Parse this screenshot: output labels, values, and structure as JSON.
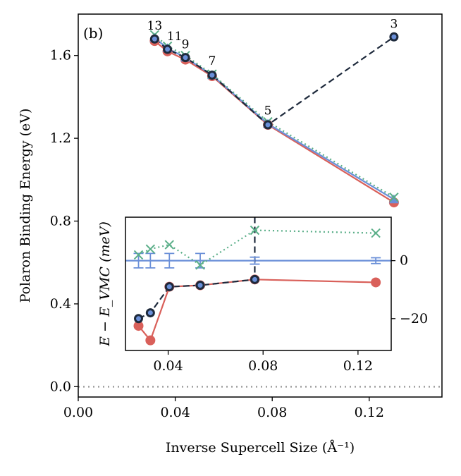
{
  "panel_label": "(b)",
  "chart_data": [
    {
      "type": "line",
      "xlabel": "Inverse Supercell Size (Å⁻¹)",
      "ylabel": "Polaron Binding Energy (eV)",
      "xlim": [
        0.0,
        0.15
      ],
      "ylim": [
        -0.05,
        1.8
      ],
      "xticks": [
        0.0,
        0.04,
        0.08,
        0.12
      ],
      "xtick_labels": [
        "0.00",
        "0.04",
        "0.08",
        "0.12"
      ],
      "yticks": [
        0.0,
        0.4,
        0.8,
        1.2,
        1.6
      ],
      "ytick_labels": [
        "0.0",
        "0.4",
        "0.8",
        "1.2",
        "1.6"
      ],
      "grid": false,
      "reference_line": {
        "y": 0.0,
        "style": "dotted",
        "color": "#9e9e9e"
      },
      "point_labels": [
        {
          "x": 0.0315,
          "y": 1.68,
          "text": "13"
        },
        {
          "x": 0.0368,
          "y": 1.63,
          "text": "11"
        },
        {
          "x": 0.0442,
          "y": 1.59,
          "text": "9"
        },
        {
          "x": 0.0552,
          "y": 1.51,
          "text": "7"
        },
        {
          "x": 0.0782,
          "y": 1.27,
          "text": "5"
        },
        {
          "x": 0.1302,
          "y": 1.69,
          "text": "3"
        }
      ],
      "series": [
        {
          "color": "#d9605a",
          "style": "solid",
          "marker": "circle",
          "x": [
            0.0315,
            0.0368,
            0.0442,
            0.0552,
            0.0782,
            0.1302
          ],
          "y": [
            1.67,
            1.62,
            1.58,
            1.5,
            1.265,
            0.89
          ]
        },
        {
          "color": "#6a8fd8",
          "style": "solid",
          "marker": "triangle",
          "x": [
            0.0315,
            0.0368,
            0.0442,
            0.0552,
            0.0782,
            0.1302
          ],
          "y": [
            1.685,
            1.635,
            1.59,
            1.505,
            1.27,
            0.905
          ]
        },
        {
          "color": "#5aae88",
          "style": "dotted",
          "marker": "x",
          "x": [
            0.0315,
            0.0368,
            0.0442,
            0.0552,
            0.0782,
            0.1302
          ],
          "y": [
            1.7,
            1.645,
            1.6,
            1.51,
            1.28,
            0.915
          ]
        },
        {
          "color": "#1e2a3c",
          "style": "dashed",
          "marker": "ring",
          "x": [
            0.0315,
            0.0368,
            0.0442,
            0.0552,
            0.0782,
            0.1302
          ],
          "y": [
            1.68,
            1.63,
            1.59,
            1.505,
            1.265,
            1.69
          ]
        }
      ]
    },
    {
      "type": "line",
      "inset": true,
      "ylabel": "E − E_VMC (meV)",
      "xlim": [
        0.022,
        0.134
      ],
      "ylim": [
        -31,
        15
      ],
      "xticks": [
        0.04,
        0.08,
        0.12
      ],
      "xtick_labels": [
        "0.04",
        "0.08",
        "0.12"
      ],
      "yticks": [
        -20,
        0
      ],
      "ytick_labels": [
        "−20",
        "0"
      ],
      "grid": false,
      "series": [
        {
          "color": "#d9605a",
          "style": "solid",
          "marker": "circle",
          "x": [
            0.0275,
            0.0325,
            0.0405,
            0.0535,
            0.0765,
            0.1275
          ],
          "y": [
            -22.5,
            -27.5,
            -9.0,
            -8.5,
            -6.5,
            -7.5
          ]
        },
        {
          "color": "#6a8fd8",
          "style": "solid",
          "marker": "errorbar",
          "x": [
            0.0275,
            0.0325,
            0.0405,
            0.0535,
            0.0765,
            0.1275
          ],
          "y": [
            0,
            0,
            0,
            0,
            0,
            0
          ],
          "err": [
            2.5,
            2.5,
            2.5,
            2.5,
            1.2,
            1.0
          ]
        },
        {
          "color": "#5aae88",
          "style": "dotted",
          "marker": "x",
          "x": [
            0.0275,
            0.0325,
            0.0405,
            0.0535,
            0.0765,
            0.1275
          ],
          "y": [
            2.0,
            4.0,
            5.5,
            -1.5,
            10.5,
            9.5
          ]
        },
        {
          "color": "#1e2a3c",
          "style": "dashed",
          "marker": "ring",
          "x": [
            0.0275,
            0.0325,
            0.0405,
            0.0535,
            0.0765
          ],
          "y": [
            -20.0,
            -18.0,
            -9.0,
            -8.5,
            -6.5
          ],
          "jump_to_top_at": 0.0765
        }
      ]
    }
  ]
}
